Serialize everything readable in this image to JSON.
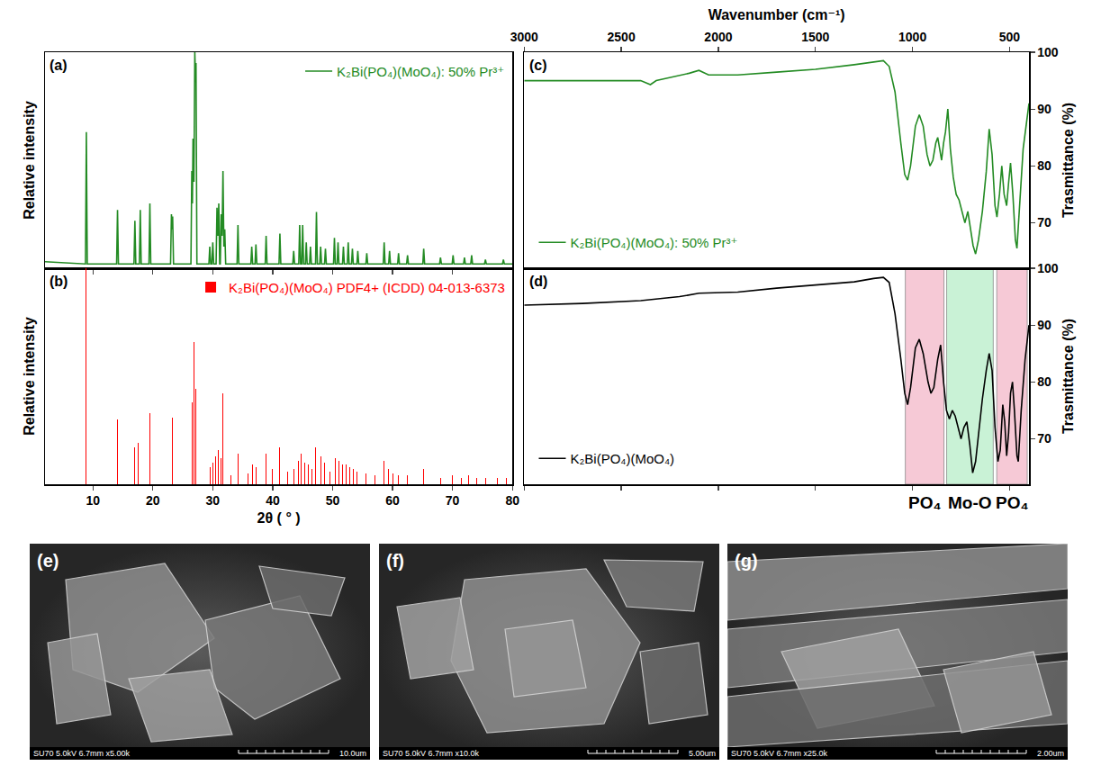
{
  "chart_data": [
    {
      "type": "line",
      "label": "(a)",
      "ylabel": "Relative intensity",
      "xlim": [
        2,
        80
      ],
      "xticks": [
        10,
        20,
        30,
        40,
        50,
        60,
        70,
        80
      ],
      "ylim": [
        0,
        100
      ],
      "tick_labels": false,
      "legend": "top right",
      "x": [
        2,
        8.75,
        8.9,
        9.05,
        13.95,
        14.1,
        14.25,
        16.85,
        17.0,
        17.15,
        17.75,
        17.9,
        18.05,
        19.35,
        19.5,
        19.65,
        22.95,
        23.1,
        23.2,
        23.3,
        23.45,
        26.35,
        26.5,
        26.6,
        26.7,
        26.85,
        27.0,
        27.1,
        27.2,
        27.35,
        29.35,
        29.5,
        29.65,
        29.85,
        30.0,
        30.15,
        30.55,
        30.7,
        30.85,
        31.0,
        31.15,
        31.25,
        31.4,
        31.55,
        31.7,
        31.85,
        32.0,
        32.15,
        34.05,
        34.2,
        34.35,
        36.35,
        36.5,
        36.65,
        37.05,
        37.2,
        37.35,
        38.75,
        38.9,
        39.05,
        41.05,
        41.2,
        41.35,
        43.35,
        43.5,
        43.65,
        44.35,
        44.5,
        44.65,
        44.85,
        45.0,
        45.15,
        45.45,
        45.6,
        45.75,
        46.15,
        46.3,
        46.45,
        47.15,
        47.3,
        47.45,
        47.85,
        48.0,
        48.15,
        48.65,
        48.8,
        48.95,
        50.15,
        50.3,
        50.45,
        50.75,
        50.9,
        51.05,
        51.65,
        51.8,
        51.95,
        52.45,
        52.6,
        52.75,
        53.15,
        53.3,
        53.45,
        54.05,
        54.2,
        54.35,
        55.55,
        55.7,
        55.85,
        58.45,
        58.6,
        58.75,
        59.35,
        59.5,
        59.65,
        60.85,
        61.0,
        61.15,
        62.35,
        62.5,
        62.65,
        65.05,
        65.2,
        65.35,
        67.85,
        68.0,
        68.15,
        69.95,
        70.1,
        70.25,
        71.85,
        72.0,
        72.15,
        73.05,
        73.2,
        73.35,
        75.35,
        75.5,
        75.65,
        78.35,
        78.5,
        78.65,
        80
      ],
      "series": [
        {
          "name": "K₂Bi(PO₄)(MoO₄): 50% Pr³⁺",
          "color": "#238b23",
          "values": [
            3,
            2,
            63,
            2,
            2,
            27,
            2,
            2,
            22,
            2,
            2,
            27,
            2,
            2,
            30,
            2,
            2,
            25,
            18,
            24,
            2,
            2,
            45,
            30,
            60,
            40,
            100,
            90,
            95,
            2,
            2,
            10,
            2,
            2,
            12,
            2,
            2,
            28,
            15,
            30,
            2,
            2,
            25,
            15,
            45,
            10,
            18,
            2,
            2,
            20,
            2,
            2,
            10,
            2,
            2,
            11,
            2,
            2,
            15,
            2,
            2,
            16,
            2,
            2,
            8,
            2,
            2,
            20,
            2,
            2,
            20,
            2,
            2,
            12,
            2,
            2,
            10,
            2,
            2,
            26,
            2,
            2,
            10,
            2,
            2,
            9,
            2,
            2,
            14,
            2,
            2,
            12,
            2,
            2,
            10,
            2,
            2,
            12,
            2,
            2,
            9,
            2,
            2,
            8,
            2,
            2,
            7,
            2,
            2,
            12,
            2,
            2,
            8,
            2,
            2,
            7,
            2,
            2,
            6,
            2,
            2,
            9,
            2,
            2,
            5,
            2,
            2,
            6,
            2,
            2,
            5,
            2,
            2,
            6,
            2,
            2,
            4,
            2,
            2,
            4,
            2,
            2
          ]
        }
      ]
    },
    {
      "type": "bar",
      "label": "(b)",
      "xlabel": "2θ ( ° )",
      "ylabel": "Relative intensity",
      "xlim": [
        2,
        80
      ],
      "xticks": [
        10,
        20,
        30,
        40,
        50,
        60,
        70,
        80
      ],
      "ylim": [
        0,
        100
      ],
      "tick_labels": "x",
      "legend": "top right",
      "x": [
        8.9,
        14.1,
        17.0,
        17.6,
        19.5,
        23.2,
        26.5,
        26.9,
        27.1,
        29.6,
        30.0,
        30.5,
        30.9,
        31.4,
        31.7,
        33.0,
        34.2,
        35.9,
        36.6,
        37.2,
        38.9,
        40.0,
        41.2,
        42.5,
        43.5,
        44.3,
        44.8,
        45.3,
        46.0,
        46.5,
        47.2,
        48.0,
        48.6,
        49.5,
        50.4,
        51.0,
        51.6,
        52.2,
        52.8,
        53.4,
        54.0,
        55.6,
        57.0,
        58.6,
        59.3,
        60.0,
        61.0,
        62.5,
        65.2,
        66.0,
        68.0,
        70.0,
        71.5,
        72.7,
        74.0,
        75.5,
        77.5,
        79.0
      ],
      "series": [
        {
          "name": "K₂Bi(PO₄)(MoO₄) PDF4+ (ICDD) 04-013-6373",
          "color": "#ff0000",
          "values": [
            100,
            30,
            17,
            19,
            33,
            31,
            38,
            66,
            44,
            8,
            10,
            13,
            16,
            12,
            42,
            4,
            14,
            5,
            9,
            8,
            14,
            7,
            17,
            6,
            7,
            11,
            14,
            10,
            9,
            7,
            17,
            13,
            10,
            6,
            12,
            11,
            9,
            9,
            8,
            7,
            6,
            5,
            4,
            11,
            7,
            5,
            4,
            4,
            7,
            4,
            3,
            4,
            3,
            4,
            3,
            3,
            3,
            3
          ]
        }
      ]
    },
    {
      "type": "line",
      "label": "(c)",
      "xlabel": "Wavenumber (cm⁻¹)",
      "ylabel": "Trasmittance (%)",
      "xlim": [
        3000,
        400
      ],
      "xticks": [
        3000,
        2500,
        2000,
        1500,
        1000,
        500
      ],
      "ylim": [
        62,
        100
      ],
      "yticks": [
        70,
        80,
        90,
        100
      ],
      "legend": "bottom left",
      "x": [
        3000,
        2700,
        2400,
        2350,
        2320,
        2150,
        2100,
        2050,
        1900,
        1700,
        1500,
        1300,
        1200,
        1150,
        1120,
        1090,
        1060,
        1040,
        1025,
        1010,
        985,
        965,
        945,
        925,
        910,
        895,
        880,
        870,
        860,
        850,
        840,
        830,
        818,
        805,
        790,
        775,
        760,
        745,
        730,
        715,
        700,
        688,
        675,
        660,
        640,
        620,
        605,
        590,
        575,
        565,
        552,
        540,
        528,
        515,
        505,
        495,
        483,
        470,
        462,
        450,
        430,
        400
      ],
      "series": [
        {
          "name": "K₂Bi(PO₄)(MoO₄): 50% Pr³⁺",
          "color": "#238b23",
          "values": [
            95,
            95,
            95,
            94.3,
            95,
            96.3,
            96.8,
            96,
            96,
            96.5,
            97,
            97.8,
            98.3,
            98.5,
            97.5,
            93,
            84,
            78.5,
            77.5,
            80,
            87,
            89,
            87,
            82,
            80,
            81,
            84,
            85,
            83,
            81,
            84,
            86,
            90,
            83,
            78,
            75,
            74,
            72,
            70,
            72,
            69,
            66,
            64.5,
            67,
            72,
            79,
            86.5,
            82,
            73,
            71,
            75,
            80,
            75,
            73,
            77,
            80.5,
            75,
            67,
            65.5,
            72,
            83,
            91
          ]
        }
      ]
    },
    {
      "type": "line",
      "label": "(d)",
      "ylabel": "Trasmittance (%)",
      "xlim": [
        3000,
        400
      ],
      "xticks": [
        3000,
        2500,
        2000,
        1500,
        1000,
        500
      ],
      "ylim": [
        62,
        100
      ],
      "yticks": [
        70,
        80,
        90,
        100
      ],
      "tick_labels": "y",
      "legend": "bottom left",
      "bands": [
        {
          "from": 1037,
          "to": 838,
          "label": "PO₄",
          "color": "#f6c9d6"
        },
        {
          "from": 824,
          "to": 584,
          "label": "Mo-O",
          "color": "#c9f2d6"
        },
        {
          "from": 566,
          "to": 409,
          "label": "PO₄",
          "color": "#f6c9d6"
        }
      ],
      "x": [
        3000,
        2700,
        2400,
        2200,
        2100,
        1900,
        1700,
        1500,
        1300,
        1200,
        1150,
        1120,
        1090,
        1060,
        1040,
        1025,
        1010,
        985,
        965,
        945,
        920,
        905,
        890,
        870,
        855,
        840,
        825,
        810,
        795,
        780,
        765,
        750,
        735,
        720,
        705,
        690,
        675,
        660,
        640,
        620,
        605,
        590,
        575,
        560,
        548,
        535,
        525,
        515,
        505,
        495,
        485,
        475,
        462,
        455,
        440,
        420,
        400
      ],
      "series": [
        {
          "name": "K₂Bi(PO₄)(MoO₄)",
          "color": "#000000",
          "values": [
            93.5,
            93.8,
            94.3,
            95,
            95.6,
            95.8,
            96.5,
            97,
            97.6,
            98.2,
            98.4,
            97.5,
            92,
            84,
            78,
            76,
            79,
            86,
            87.5,
            85,
            80,
            78,
            79,
            84,
            86.5,
            80,
            75,
            73.5,
            75,
            74,
            72,
            70,
            72,
            73,
            69,
            64,
            66,
            71,
            77,
            82,
            85,
            82,
            72,
            66,
            68,
            76,
            73,
            67,
            71,
            78,
            80,
            75,
            67,
            66,
            75,
            84,
            90
          ]
        }
      ]
    }
  ],
  "images": [
    {
      "label": "(e)",
      "info": "SU70 5.0kV 6.7mm x5.00k",
      "scale": "10.0um"
    },
    {
      "label": "(f)",
      "info": "SU70 5.0kV 6.7mm x10.0k",
      "scale": "5.00um"
    },
    {
      "label": "(g)",
      "info": "SU70 5.0kV 6.7mm x25.0k",
      "scale": "2.00um"
    }
  ]
}
